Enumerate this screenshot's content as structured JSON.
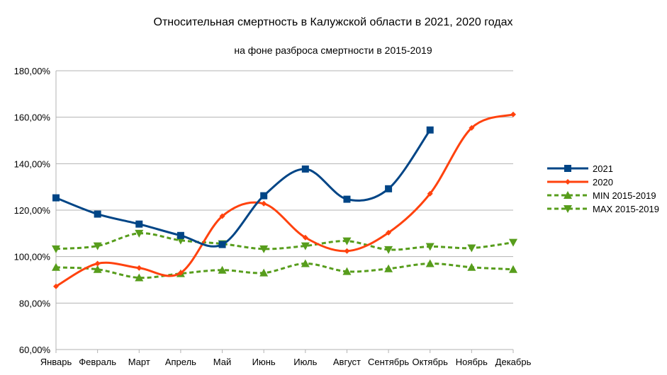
{
  "chart_data": {
    "type": "line",
    "title": "Относительная смертность в Калужской области в 2021, 2020 годах",
    "subtitle": "на фоне разброса смертности в 2015-2019",
    "xlabel": "",
    "ylabel": "",
    "ylim": [
      60,
      180
    ],
    "yticks": [
      60,
      80,
      100,
      120,
      140,
      160,
      180
    ],
    "ytick_labels": [
      "60,00%",
      "80,00%",
      "100,00%",
      "120,00%",
      "140,00%",
      "160,00%",
      "180,00%"
    ],
    "grid": true,
    "legend_position": "right",
    "categories": [
      "Январь",
      "Февраль",
      "Март",
      "Апрель",
      "Май",
      "Июнь",
      "Июль",
      "Август",
      "Сентябрь",
      "Октябрь",
      "Ноябрь",
      "Декабрь"
    ],
    "series": [
      {
        "name": "2021",
        "color": "#004586",
        "marker": "square",
        "dashed": false,
        "values": [
          125.3,
          118.3,
          114.0,
          109.1,
          105.2,
          126.2,
          137.7,
          124.7,
          129.2,
          154.5,
          null,
          null
        ]
      },
      {
        "name": "2020",
        "color": "#ff420e",
        "marker": "diamond",
        "dashed": false,
        "values": [
          87.2,
          97.0,
          95.1,
          93.0,
          117.4,
          122.8,
          108.2,
          102.4,
          110.3,
          127.1,
          155.4,
          161.2
        ]
      },
      {
        "name": "MIN 2015-2019",
        "color": "#579d1c",
        "marker": "triangle-up",
        "dashed": true,
        "values": [
          95.4,
          94.5,
          90.9,
          92.7,
          94.2,
          93.0,
          97.0,
          93.6,
          94.8,
          97.0,
          95.4,
          94.5
        ]
      },
      {
        "name": "MAX 2015-2019",
        "color": "#579d1c",
        "marker": "triangle-down",
        "dashed": true,
        "values": [
          103.3,
          104.6,
          110.0,
          107.0,
          105.5,
          103.3,
          104.6,
          106.7,
          103.0,
          104.3,
          103.7,
          106.1
        ]
      }
    ]
  }
}
